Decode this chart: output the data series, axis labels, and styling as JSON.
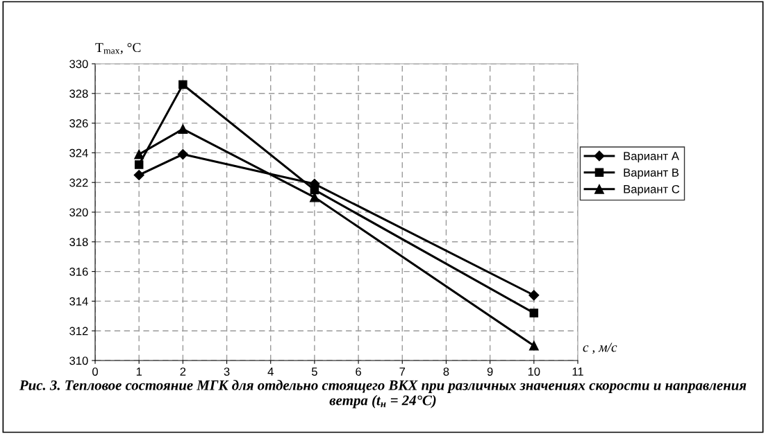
{
  "chart_data": {
    "type": "line",
    "title": "Рис. 3. Тепловое состояние МГК для отдельно стоящего ВКХ при различных значениях скорости и направления ветра (t$_{н}$ = 24°C)",
    "xlabel": "c , м/с",
    "ylabel": "T$_{max}$, °C",
    "x": [
      1,
      2,
      5,
      10
    ],
    "series": [
      {
        "name": "Вариант А",
        "color": "#000000",
        "marker": "diamond",
        "values": [
          322.5,
          323.9,
          321.9,
          314.4
        ]
      },
      {
        "name": "Вариант В",
        "color": "#000000",
        "marker": "square",
        "values": [
          323.2,
          328.6,
          321.5,
          313.2
        ]
      },
      {
        "name": "Вариант С",
        "color": "#000000",
        "marker": "triangle",
        "values": [
          323.9,
          325.6,
          321.0,
          311.0
        ]
      }
    ],
    "xlim": [
      0,
      11
    ],
    "xticks": [
      0,
      1,
      2,
      3,
      4,
      5,
      6,
      7,
      8,
      9,
      10,
      11
    ],
    "ylim": [
      310,
      330
    ],
    "yticks": [
      310,
      312,
      314,
      316,
      318,
      320,
      322,
      324,
      326,
      328,
      330
    ],
    "grid": true,
    "legend": "right",
    "line_style": "solid"
  }
}
